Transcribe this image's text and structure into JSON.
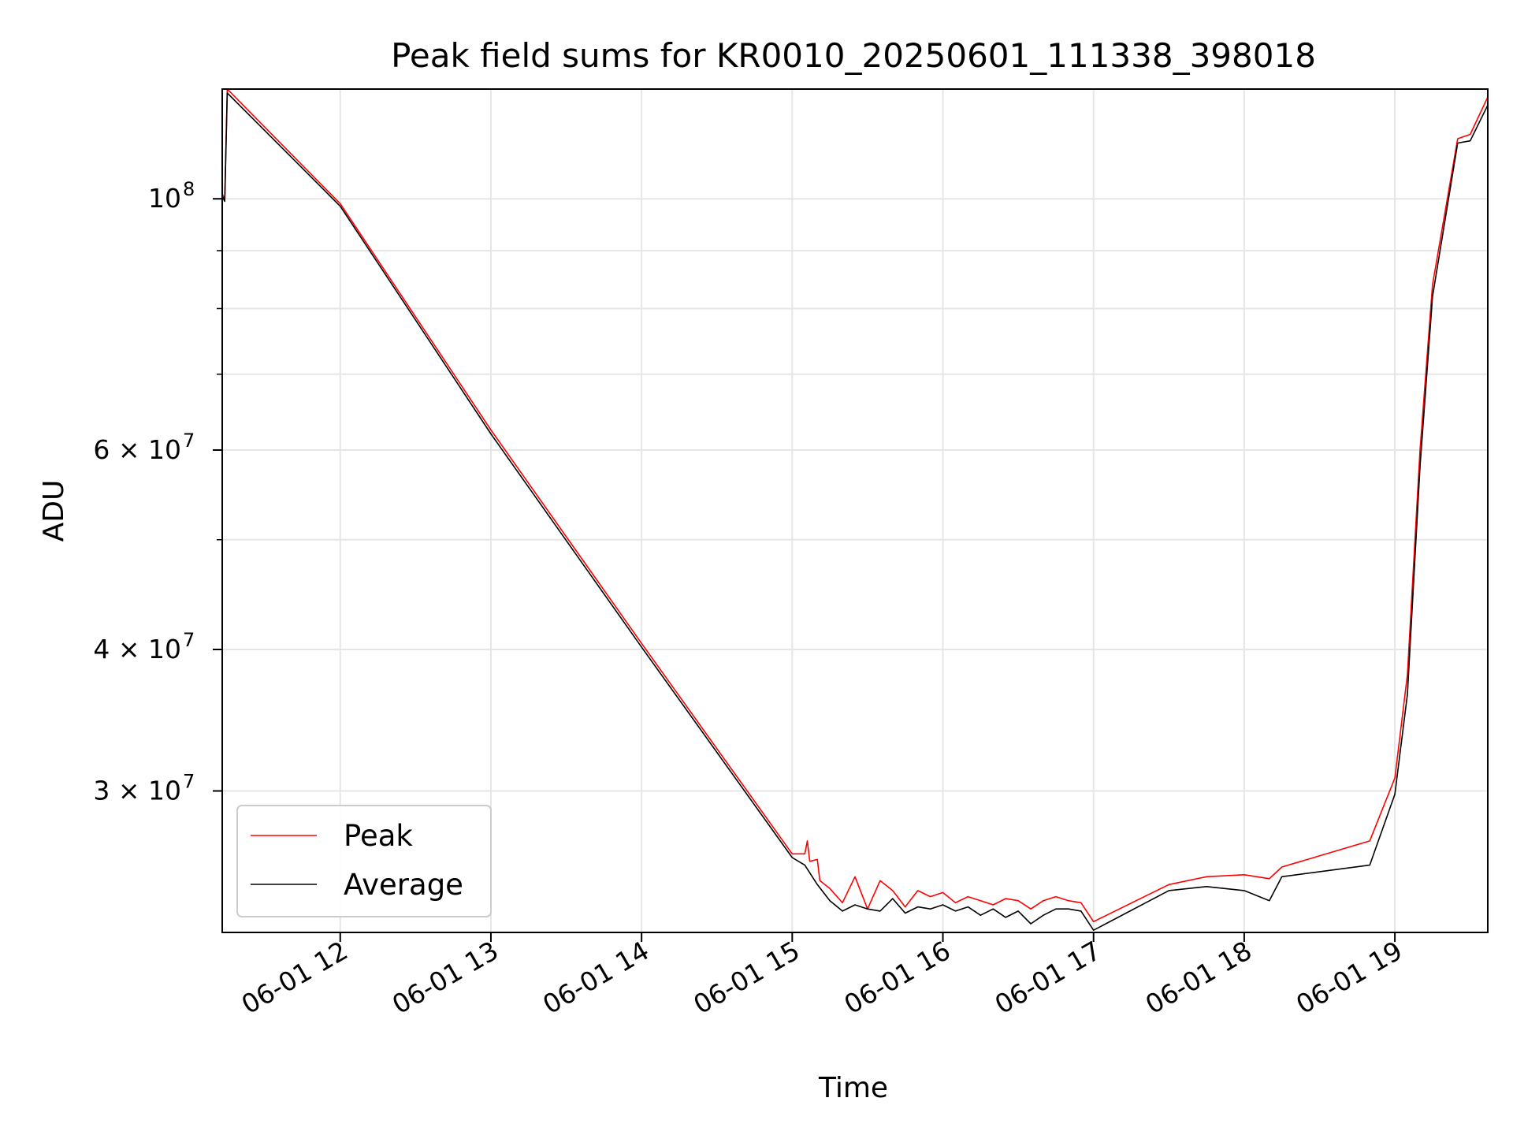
{
  "chart_data": {
    "type": "line",
    "title": "Peak field sums for KR0010_20250601_111338_398018",
    "xlabel": "Time",
    "ylabel": "ADU",
    "xlim": [
      "06-01 11:13",
      "06-01 19:37"
    ],
    "ylim": [
      22500000,
      125000000
    ],
    "yscale": "log",
    "grid": true,
    "legend_position": "lower-left",
    "x_ticks": [
      "06-01 12",
      "06-01 13",
      "06-01 14",
      "06-01 15",
      "06-01 16",
      "06-01 17",
      "06-01 18",
      "06-01 19"
    ],
    "y_ticks": [
      {
        "value": 30000000,
        "base": "3 × 10",
        "exp": "7"
      },
      {
        "value": 40000000,
        "base": "4 × 10",
        "exp": "7"
      },
      {
        "value": 60000000,
        "base": "6 × 10",
        "exp": "7"
      },
      {
        "value": 100000000,
        "base": "10",
        "exp": "8"
      }
    ],
    "series": [
      {
        "name": "Peak",
        "color": "#ff0000",
        "points": [
          [
            "06-01 11:13",
            101000000
          ],
          [
            "06-01 11:14",
            100000000
          ],
          [
            "06-01 11:15",
            125000000
          ],
          [
            "06-01 12:00",
            99000000
          ],
          [
            "06-01 13:00",
            62500000
          ],
          [
            "06-01 14:00",
            40500000
          ],
          [
            "06-01 15:00",
            26400000
          ],
          [
            "06-01 15:05",
            26400000
          ],
          [
            "06-01 15:06",
            27100000
          ],
          [
            "06-01 15:07",
            26000000
          ],
          [
            "06-01 15:10",
            26100000
          ],
          [
            "06-01 15:11",
            25000000
          ],
          [
            "06-01 15:15",
            24600000
          ],
          [
            "06-01 15:20",
            23900000
          ],
          [
            "06-01 15:25",
            25200000
          ],
          [
            "06-01 15:30",
            23600000
          ],
          [
            "06-01 15:35",
            25000000
          ],
          [
            "06-01 15:40",
            24500000
          ],
          [
            "06-01 15:45",
            23700000
          ],
          [
            "06-01 15:50",
            24500000
          ],
          [
            "06-01 15:55",
            24200000
          ],
          [
            "06-01 16:00",
            24400000
          ],
          [
            "06-01 16:05",
            23900000
          ],
          [
            "06-01 16:10",
            24200000
          ],
          [
            "06-01 16:15",
            24000000
          ],
          [
            "06-01 16:20",
            23800000
          ],
          [
            "06-01 16:25",
            24100000
          ],
          [
            "06-01 16:30",
            24000000
          ],
          [
            "06-01 16:35",
            23600000
          ],
          [
            "06-01 16:40",
            24000000
          ],
          [
            "06-01 16:45",
            24200000
          ],
          [
            "06-01 16:50",
            24000000
          ],
          [
            "06-01 16:55",
            23900000
          ],
          [
            "06-01 17:00",
            23000000
          ],
          [
            "06-01 17:30",
            24800000
          ],
          [
            "06-01 17:45",
            25200000
          ],
          [
            "06-01 18:00",
            25300000
          ],
          [
            "06-01 18:10",
            25100000
          ],
          [
            "06-01 18:15",
            25700000
          ],
          [
            "06-01 18:50",
            27100000
          ],
          [
            "06-01 19:00",
            30800000
          ],
          [
            "06-01 19:05",
            38000000
          ],
          [
            "06-01 19:10",
            60000000
          ],
          [
            "06-01 19:15",
            84000000
          ],
          [
            "06-01 19:25",
            113000000
          ],
          [
            "06-01 19:30",
            114000000
          ],
          [
            "06-01 19:37",
            123000000
          ]
        ]
      },
      {
        "name": "Average",
        "color": "#000000",
        "points": [
          [
            "06-01 11:13",
            100500000
          ],
          [
            "06-01 11:14",
            99500000
          ],
          [
            "06-01 11:15",
            124000000
          ],
          [
            "06-01 12:00",
            98500000
          ],
          [
            "06-01 13:00",
            62000000
          ],
          [
            "06-01 14:00",
            40200000
          ],
          [
            "06-01 15:00",
            26200000
          ],
          [
            "06-01 15:05",
            25800000
          ],
          [
            "06-01 15:10",
            24800000
          ],
          [
            "06-01 15:15",
            24000000
          ],
          [
            "06-01 15:20",
            23500000
          ],
          [
            "06-01 15:25",
            23800000
          ],
          [
            "06-01 15:30",
            23600000
          ],
          [
            "06-01 15:35",
            23500000
          ],
          [
            "06-01 15:40",
            24100000
          ],
          [
            "06-01 15:45",
            23400000
          ],
          [
            "06-01 15:50",
            23700000
          ],
          [
            "06-01 15:55",
            23600000
          ],
          [
            "06-01 16:00",
            23800000
          ],
          [
            "06-01 16:05",
            23500000
          ],
          [
            "06-01 16:10",
            23700000
          ],
          [
            "06-01 16:15",
            23300000
          ],
          [
            "06-01 16:20",
            23600000
          ],
          [
            "06-01 16:25",
            23200000
          ],
          [
            "06-01 16:30",
            23500000
          ],
          [
            "06-01 16:35",
            22900000
          ],
          [
            "06-01 16:40",
            23300000
          ],
          [
            "06-01 16:45",
            23600000
          ],
          [
            "06-01 16:50",
            23600000
          ],
          [
            "06-01 16:55",
            23500000
          ],
          [
            "06-01 17:00",
            22600000
          ],
          [
            "06-01 17:30",
            24500000
          ],
          [
            "06-01 17:45",
            24700000
          ],
          [
            "06-01 18:00",
            24500000
          ],
          [
            "06-01 18:10",
            24000000
          ],
          [
            "06-01 18:15",
            25200000
          ],
          [
            "06-01 18:50",
            25800000
          ],
          [
            "06-01 19:00",
            29800000
          ],
          [
            "06-01 19:05",
            36500000
          ],
          [
            "06-01 19:10",
            58000000
          ],
          [
            "06-01 19:15",
            82000000
          ],
          [
            "06-01 19:25",
            112000000
          ],
          [
            "06-01 19:30",
            112500000
          ],
          [
            "06-01 19:37",
            121000000
          ]
        ]
      }
    ]
  }
}
